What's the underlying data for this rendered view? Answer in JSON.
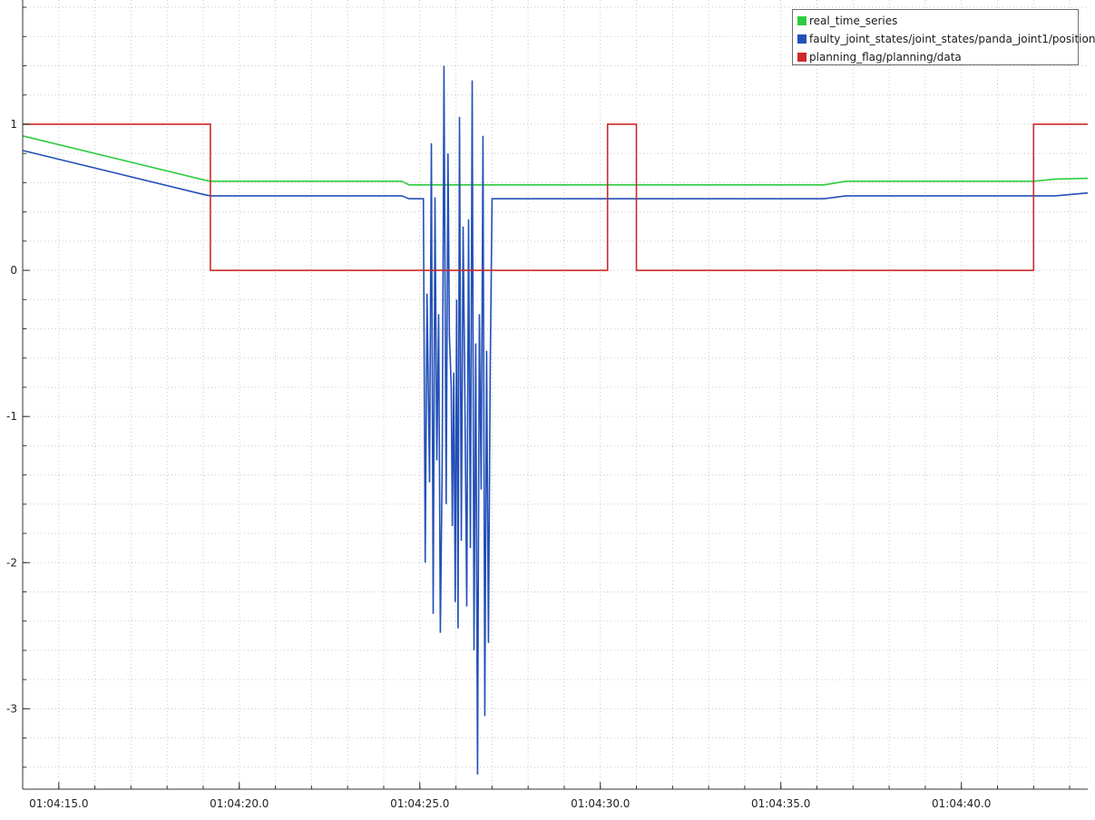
{
  "chart_data": {
    "type": "line",
    "xlim": [
      "01:04:14.0",
      "01:04:43.5"
    ],
    "ylim": [
      -3.55,
      1.85
    ],
    "grid": true,
    "legend_position": "top-right",
    "x_tick_labels": [
      "01:04:15.0",
      "01:04:20.0",
      "01:04:25.0",
      "01:04:30.0",
      "01:04:35.0",
      "01:04:40.0"
    ],
    "x_ticks": [
      "01:04:15.0",
      "01:04:20.0",
      "01:04:25.0",
      "01:04:30.0",
      "01:04:35.0",
      "01:04:40.0"
    ],
    "y_tick_labels": [
      "1",
      "0",
      "-1",
      "-2",
      "-3"
    ],
    "y_ticks": [
      1,
      0,
      -1,
      -2,
      -3
    ],
    "series": [
      {
        "name": "real_time_series",
        "color": "#2ecc40",
        "x": [
          "01:04:14.0",
          "01:04:19.0",
          "01:04:19.2",
          "01:04:24.5",
          "01:04:24.7",
          "01:04:36.2",
          "01:04:36.8",
          "01:04:42.0",
          "01:04:42.6",
          "01:04:43.5"
        ],
        "y": [
          0.92,
          0.62,
          0.61,
          0.61,
          0.585,
          0.585,
          0.61,
          0.61,
          0.625,
          0.63
        ]
      },
      {
        "name": "faulty_joint_states/joint_states/panda_joint1/position",
        "color": "#2350b8",
        "x": [
          "01:04:14.0",
          "01:04:19.0",
          "01:04:19.2",
          "01:04:24.5",
          "01:04:24.7",
          "01:04:25.1",
          "01:04:25.15",
          "01:04:25.2",
          "01:04:25.27",
          "01:04:25.32",
          "01:04:25.37",
          "01:04:25.42",
          "01:04:25.47",
          "01:04:25.52",
          "01:04:25.57",
          "01:04:25.62",
          "01:04:25.67",
          "01:04:25.73",
          "01:04:25.78",
          "01:04:25.82",
          "01:04:25.87",
          "01:04:25.9",
          "01:04:25.94",
          "01:04:25.98",
          "01:04:26.02",
          "01:04:26.06",
          "01:04:26.1",
          "01:04:26.15",
          "01:04:26.2",
          "01:04:26.25",
          "01:04:26.3",
          "01:04:26.35",
          "01:04:26.4",
          "01:04:26.45",
          "01:04:26.5",
          "01:04:26.55",
          "01:04:26.6",
          "01:04:26.65",
          "01:04:26.7",
          "01:04:26.75",
          "01:04:26.8",
          "01:04:26.85",
          "01:04:26.9",
          "01:04:26.95",
          "01:04:27.0",
          "01:04:27.05",
          "01:04:27.1",
          "01:04:27.15",
          "01:04:27.2",
          "01:04:27.3",
          "01:04:36.2",
          "01:04:36.8",
          "01:04:42.6",
          "01:04:43.5"
        ],
        "y": [
          0.82,
          0.52,
          0.51,
          0.51,
          0.49,
          0.49,
          -2.0,
          -0.16,
          -1.45,
          0.87,
          -2.35,
          0.5,
          -1.3,
          -0.3,
          -2.48,
          -1.35,
          1.4,
          -1.6,
          0.8,
          -0.45,
          -0.8,
          -1.75,
          -0.7,
          -2.27,
          -0.2,
          -2.45,
          1.05,
          -1.85,
          0.3,
          -0.9,
          -2.3,
          0.35,
          -1.9,
          1.3,
          -2.6,
          -0.5,
          -3.45,
          -0.3,
          -1.5,
          0.92,
          -3.05,
          -0.55,
          -2.55,
          -0.65,
          0.49,
          0.49,
          0.49,
          0.49,
          0.49,
          0.49,
          0.49,
          0.51,
          0.51,
          0.53
        ]
      },
      {
        "name": "planning_flag/planning/data",
        "color": "#cc2a2a",
        "step": true,
        "x": [
          "01:04:14.0",
          "01:04:19.2",
          "01:04:30.2",
          "01:04:31.0",
          "01:04:42.0",
          "01:04:43.5"
        ],
        "y": [
          1,
          0,
          1,
          0,
          1,
          1
        ]
      }
    ]
  }
}
